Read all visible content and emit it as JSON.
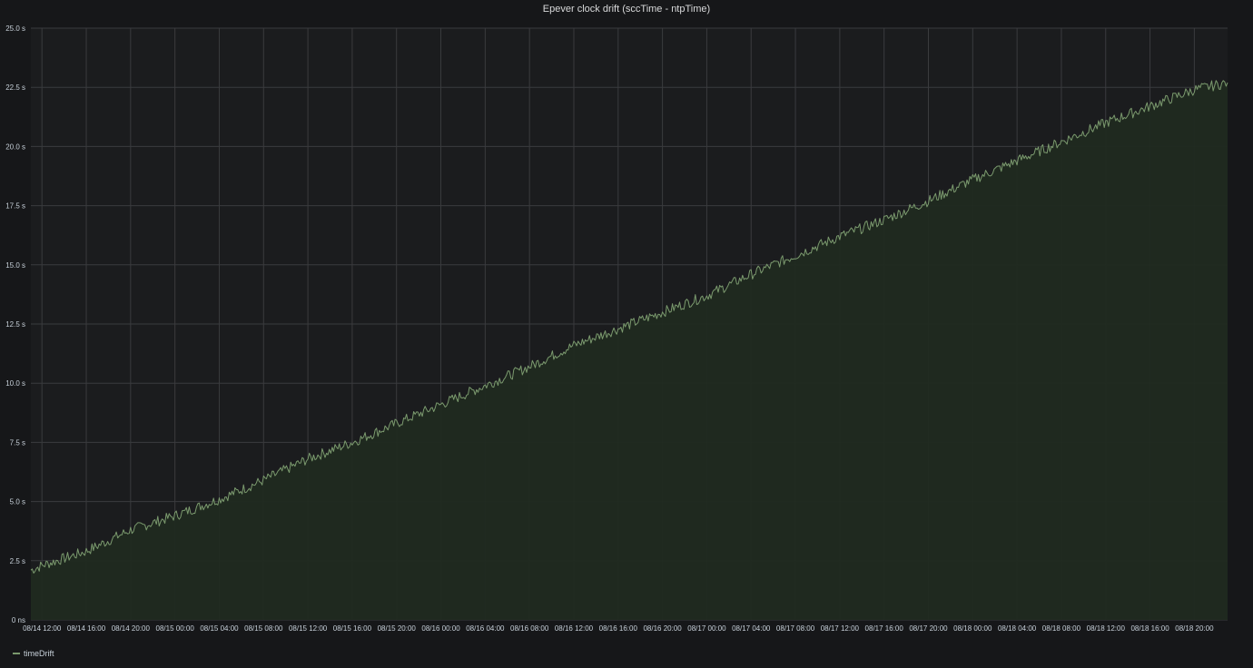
{
  "colors": {
    "background": "#161719",
    "plot_background": "#1b1c1e",
    "grid": "#3a3b3e",
    "text": "#c7d0d9",
    "series_line": "#7b9a6e",
    "series_fill": "#202a20"
  },
  "chart_data": {
    "type": "area",
    "title": "Epever clock drift (sccTime - ntpTime)",
    "xlabel": "",
    "ylabel": "",
    "grid": true,
    "legend_position": "bottom-left",
    "y_unit": "s",
    "ylim": [
      0,
      25
    ],
    "y_ticks": [
      {
        "value": 0,
        "label": "0 ns"
      },
      {
        "value": 2.5,
        "label": "2.5 s"
      },
      {
        "value": 5,
        "label": "5.0 s"
      },
      {
        "value": 7.5,
        "label": "7.5 s"
      },
      {
        "value": 10,
        "label": "10.0 s"
      },
      {
        "value": 12.5,
        "label": "12.5 s"
      },
      {
        "value": 15,
        "label": "15.0 s"
      },
      {
        "value": 17.5,
        "label": "17.5 s"
      },
      {
        "value": 20,
        "label": "20.0 s"
      },
      {
        "value": 22.5,
        "label": "22.5 s"
      },
      {
        "value": 25,
        "label": "25.0 s"
      }
    ],
    "xlim": [
      "08/14 11:00",
      "08/18 23:00"
    ],
    "x_ticks": [
      "08/14 12:00",
      "08/14 16:00",
      "08/14 20:00",
      "08/15 00:00",
      "08/15 04:00",
      "08/15 08:00",
      "08/15 12:00",
      "08/15 16:00",
      "08/15 20:00",
      "08/16 00:00",
      "08/16 04:00",
      "08/16 08:00",
      "08/16 12:00",
      "08/16 16:00",
      "08/16 20:00",
      "08/17 00:00",
      "08/17 04:00",
      "08/17 08:00",
      "08/17 12:00",
      "08/17 16:00",
      "08/17 20:00",
      "08/18 00:00",
      "08/18 04:00",
      "08/18 08:00",
      "08/18 12:00",
      "08/18 16:00",
      "08/18 20:00"
    ],
    "series": [
      {
        "name": "timeDrift",
        "color": "#7b9a6e",
        "x": [
          "08/14 11:00",
          "08/14 12:00",
          "08/14 16:00",
          "08/14 20:00",
          "08/15 00:00",
          "08/15 04:00",
          "08/15 08:00",
          "08/15 12:00",
          "08/15 16:00",
          "08/15 20:00",
          "08/16 00:00",
          "08/16 04:00",
          "08/16 08:00",
          "08/16 12:00",
          "08/16 16:00",
          "08/16 20:00",
          "08/17 00:00",
          "08/17 04:00",
          "08/17 08:00",
          "08/17 12:00",
          "08/17 16:00",
          "08/17 20:00",
          "08/18 00:00",
          "08/18 04:00",
          "08/18 08:00",
          "08/18 12:00",
          "08/18 16:00",
          "08/18 20:00",
          "08/18 23:00"
        ],
        "y": [
          2.1,
          2.3,
          2.9,
          3.8,
          4.4,
          5.1,
          5.9,
          6.8,
          7.5,
          8.3,
          9.1,
          9.9,
          10.7,
          11.6,
          12.3,
          13.0,
          13.7,
          14.6,
          15.4,
          16.2,
          16.9,
          17.7,
          18.6,
          19.4,
          20.2,
          21.0,
          21.7,
          22.4,
          22.7
        ]
      }
    ]
  },
  "legend": {
    "items": [
      {
        "label": "timeDrift",
        "color": "#7b9a6e"
      }
    ]
  }
}
